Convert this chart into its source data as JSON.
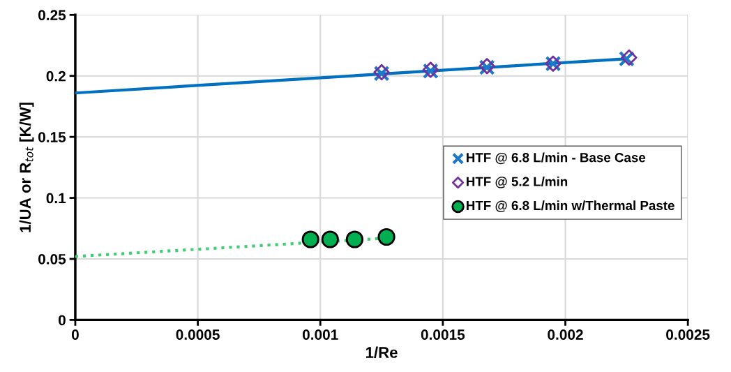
{
  "chart_data": {
    "type": "scatter",
    "xlabel": "1/Re",
    "ylabel": "1/UA or R$_{tot}$ [K/W]",
    "xlim": [
      0,
      0.0025
    ],
    "xticks": [
      0,
      0.0005,
      0.001,
      0.0015,
      0.002,
      0.0025
    ],
    "ylim": [
      0,
      0.25
    ],
    "yticks": [
      0,
      0.05,
      0.1,
      0.15,
      0.2,
      0.25
    ],
    "grid": true,
    "legend": "right",
    "series": [
      {
        "type": "line",
        "color": "#0070c0",
        "line_style": "solid",
        "marker": "none",
        "x": [
          0,
          0.00225
        ],
        "values": [
          0.186,
          0.214
        ]
      },
      {
        "type": "line",
        "color": "#3ecf72",
        "line_style": "dotted",
        "marker": "none",
        "x": [
          0,
          0.00127
        ],
        "values": [
          0.052,
          0.067
        ]
      },
      {
        "name": "HTF @ 6.8 L/min - Base Case",
        "marker": "cross",
        "color": "#1f78c8",
        "x": [
          0.00125,
          0.00145,
          0.00168,
          0.00195,
          0.00225
        ],
        "values": [
          0.202,
          0.204,
          0.207,
          0.21,
          0.214
        ]
      },
      {
        "name": "HTF @ 5.2 L/min",
        "marker": "diamond",
        "color": "#7030a0",
        "x": [
          0.00125,
          0.00145,
          0.00168,
          0.00195,
          0.00226
        ],
        "values": [
          0.203,
          0.205,
          0.208,
          0.21,
          0.215
        ]
      },
      {
        "name": "HTF @ 6.8 L/min w/Thermal Paste",
        "marker": "circle",
        "color": "#00b050",
        "x": [
          0.00096,
          0.00104,
          0.00114,
          0.00127
        ],
        "values": [
          0.066,
          0.066,
          0.066,
          0.068
        ]
      }
    ]
  }
}
